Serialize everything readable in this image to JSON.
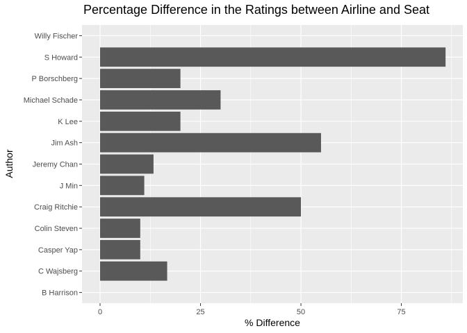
{
  "chart_data": {
    "type": "bar",
    "orientation": "horizontal",
    "title": "Percentage Difference in the Ratings between Airline and Seat",
    "xlabel": "% Difference",
    "ylabel": "Author",
    "categories": [
      "B Harrison",
      "C Wajsberg",
      "Casper Yap",
      "Colin Steven",
      "Craig Ritchie",
      "J Min",
      "Jeremy Chan",
      "Jim Ash",
      "K Lee",
      "Michael Schade",
      "P Borschberg",
      "S Howard",
      "Willy Fischer"
    ],
    "values": [
      0,
      16.7,
      10,
      10,
      50,
      11,
      13.3,
      55,
      20,
      30,
      20,
      86,
      0
    ],
    "xlim": [
      -4.5,
      90.3
    ],
    "xticks": [
      0,
      25,
      50,
      75
    ],
    "xtick_labels": [
      "0",
      "25",
      "50",
      "75"
    ],
    "grid": true,
    "legend": "none",
    "colors": {
      "panel": "#ebebeb",
      "bar": "#595959",
      "grid_major": "#ffffff",
      "text": "#4d4d4d"
    }
  }
}
